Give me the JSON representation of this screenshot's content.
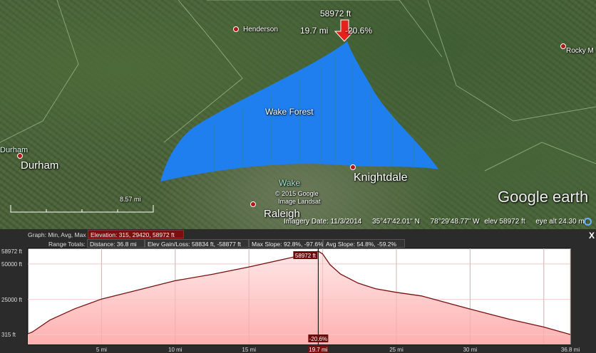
{
  "map": {
    "pointer": {
      "elevation": "58972 ft",
      "distance": "19.7 mi",
      "slope": "-20.6%"
    },
    "places": {
      "henderson": "Henderson",
      "rocky_mount": "Rocky M",
      "durham_small": "Durham",
      "durham": "Durham",
      "wake_forest": "Wake Forest",
      "wake": "Wake",
      "knightdale": "Knightdale",
      "raleigh": "Raleigh"
    },
    "copyright": "© 2015 Google",
    "imagery_source": "Image Landsat",
    "scale": "8.57 mi",
    "logo": "Google earth",
    "status": {
      "imagery_date": "Imagery Date: 11/3/2014",
      "lat": "35°47'42.01\" N",
      "lon": "78°29'48.77\" W",
      "elev": "elev 58972 ft",
      "eye_alt": "eye alt  24.30 mi"
    },
    "path_color": "#1f7fef"
  },
  "profile": {
    "graph_label": "Graph: Min, Avg, Max",
    "elevation_box": "Elevation: 315, 29420, 58972 ft",
    "range_label": "Range Totals:",
    "distance_box": "Distance: 36.8 mi",
    "gain_box": "Elev Gain/Loss: 58834 ft, -58877 ft",
    "max_slope_box": "Max Slope: 92.8%, -97.6%",
    "avg_slope_box": "Avg Slope: 54.8%, -59.2%",
    "close": "X",
    "cursor": {
      "elevation": "58972 ft",
      "slope": "-20.6%",
      "distance": "19.7 mi",
      "x": 19.7
    }
  },
  "chart_data": {
    "type": "area",
    "xlim": [
      0,
      36.8
    ],
    "ylim": [
      315,
      58972
    ],
    "yticks": [
      {
        "v": 58972,
        "label": "58972 ft"
      },
      {
        "v": 50000,
        "label": "50000 ft"
      },
      {
        "v": 25000,
        "label": "25000 ft"
      },
      {
        "v": 315,
        "label": "315 ft"
      }
    ],
    "xticks": [
      {
        "v": 5,
        "label": "5 mi"
      },
      {
        "v": 10,
        "label": "10 mi"
      },
      {
        "v": 15,
        "label": "15 mi"
      },
      {
        "v": 20,
        "label": ""
      },
      {
        "v": 25,
        "label": "25 mi"
      },
      {
        "v": 30,
        "label": "30 mi"
      },
      {
        "v": 35,
        "label": ""
      },
      {
        "v": 36.8,
        "label": "36.8 mi"
      }
    ],
    "x": [
      0,
      0.3,
      1.5,
      3.2,
      5,
      7.5,
      10,
      12.5,
      15,
      17.8,
      19.7,
      20,
      20.5,
      21.2,
      22.4,
      23.6,
      25,
      26.7,
      30,
      32.7,
      35,
      36.8
    ],
    "y": [
      800,
      2000,
      10500,
      18500,
      25300,
      31700,
      38200,
      42700,
      47900,
      54300,
      58972,
      57000,
      49500,
      43000,
      36500,
      32500,
      30000,
      27500,
      18200,
      11000,
      5600,
      315
    ],
    "line_color": "#7a1010",
    "fill_color": "#ffb0b0"
  }
}
